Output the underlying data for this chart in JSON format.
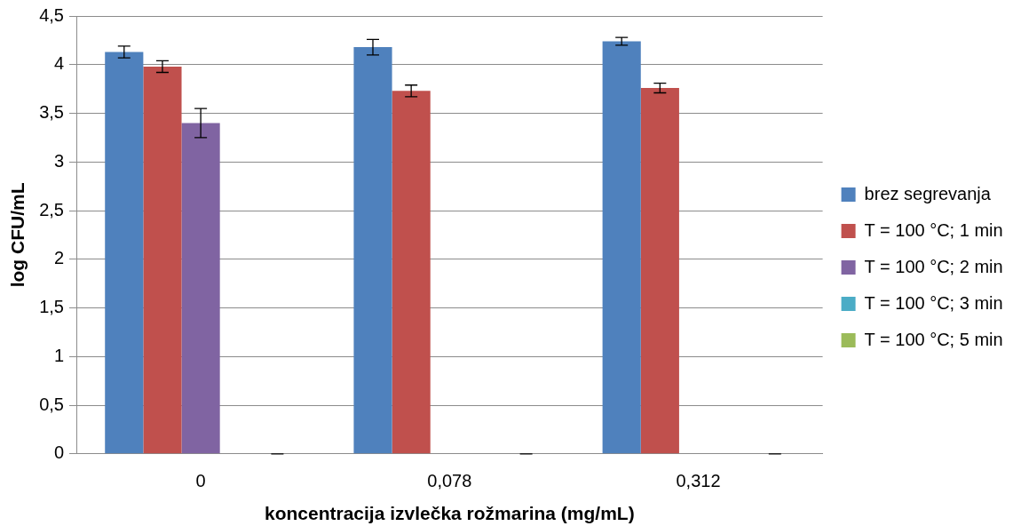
{
  "chart_data": {
    "type": "bar",
    "xlabel": "koncentracija izvlečka rožmarina (mg/mL)",
    "ylabel": "log CFU/mL",
    "categories": [
      "0",
      "0,078",
      "0,312"
    ],
    "series": [
      {
        "name": "brez segrevanja",
        "color": "#4f81bd",
        "values": [
          4.13,
          4.18,
          4.24
        ],
        "errors": [
          0.06,
          0.08,
          0.04
        ]
      },
      {
        "name": "T = 100 °C; 1 min",
        "color": "#c0504d",
        "values": [
          3.98,
          3.73,
          3.76
        ],
        "errors": [
          0.06,
          0.06,
          0.05
        ]
      },
      {
        "name": "T = 100 °C; 2 min",
        "color": "#8064a2",
        "values": [
          3.4,
          0,
          0
        ],
        "errors": [
          0.15,
          null,
          null
        ]
      },
      {
        "name": "T = 100 °C; 3 min",
        "color": "#4bacc6",
        "values": [
          0,
          0,
          0
        ]
      },
      {
        "name": "T = 100 °C; 5 min",
        "color": "#9bbb59",
        "values": [
          0,
          0,
          0
        ],
        "errors": [
          0,
          0,
          0
        ]
      }
    ],
    "ylim": [
      0,
      4.5
    ],
    "yticks": [
      0,
      {
        "value": 0.5,
        "label": "0,5"
      },
      1,
      {
        "value": 1.5,
        "label": "1,5"
      },
      2,
      {
        "value": 2.5,
        "label": "2,5"
      },
      3,
      {
        "value": 3.5,
        "label": "3,5"
      },
      4,
      {
        "value": 4.5,
        "label": "4,5"
      }
    ],
    "grid": "y",
    "legend": "right"
  }
}
